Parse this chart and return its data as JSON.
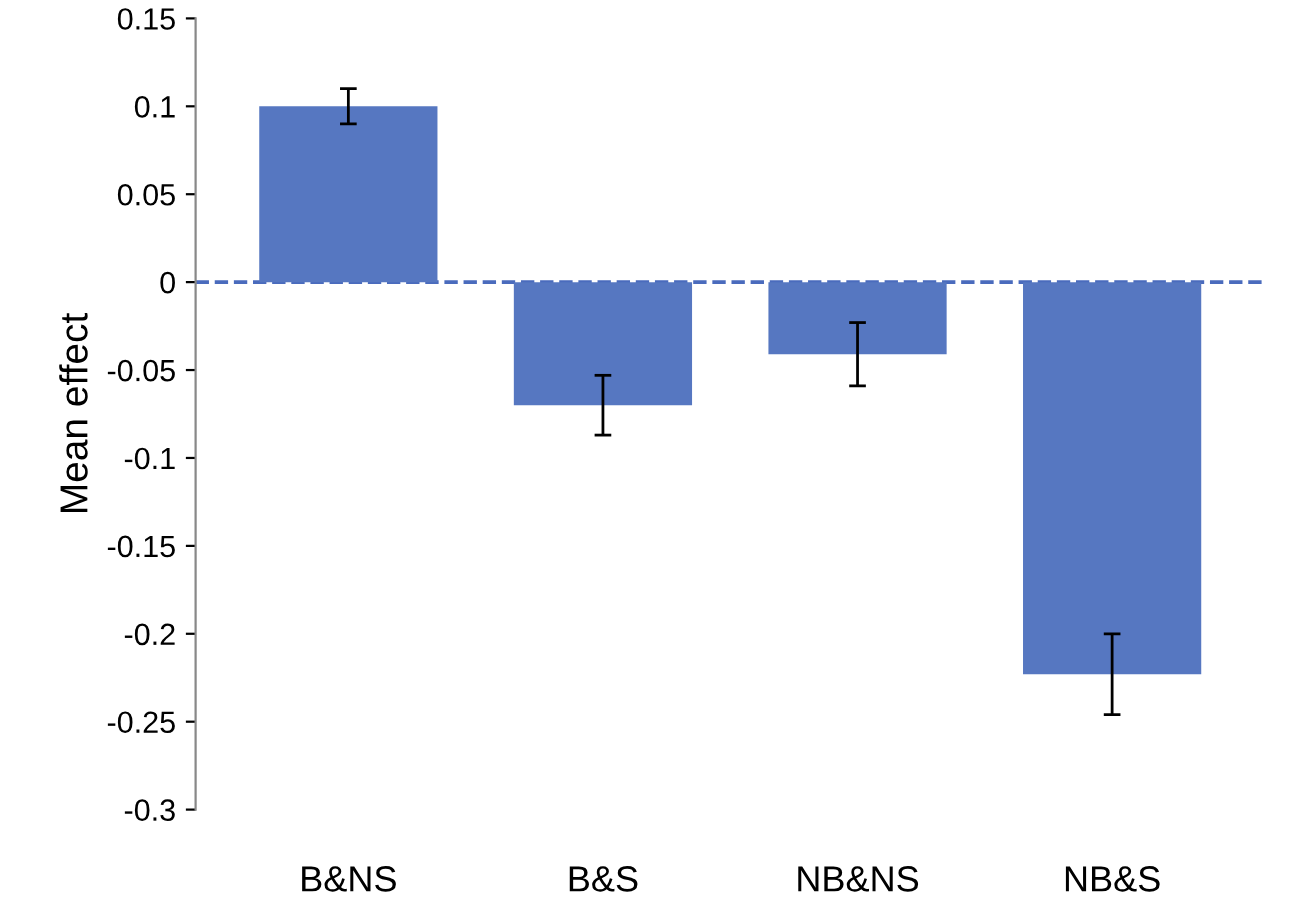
{
  "chart_data": {
    "type": "bar",
    "ylabel": "Mean effect",
    "categories": [
      "B&NS",
      "B&S",
      "NB&NS",
      "NB&S"
    ],
    "values": [
      0.1,
      -0.07,
      -0.041,
      -0.223
    ],
    "errors": [
      0.01,
      0.017,
      0.018,
      0.023
    ],
    "color": "#5677c1",
    "ylim": [
      -0.3,
      0.15
    ],
    "yticks": [
      0.15,
      0.1,
      0.05,
      0,
      -0.05,
      -0.1,
      -0.15,
      -0.2,
      -0.25,
      -0.3
    ],
    "ref_lines": [
      {
        "axis": "y",
        "value": 0,
        "color": "#4a6bbd",
        "line_style": "dashed"
      }
    ],
    "grid": false
  }
}
